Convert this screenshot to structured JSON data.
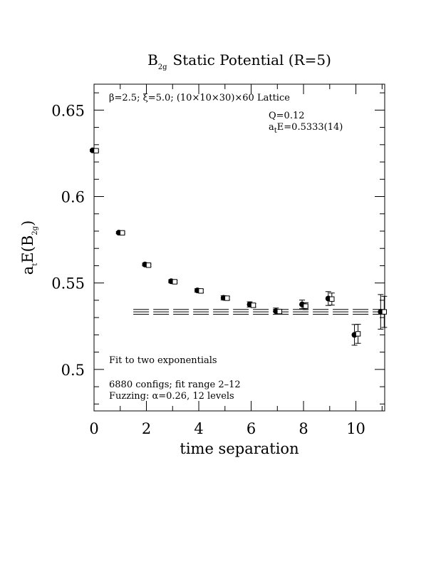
{
  "chart_data": {
    "type": "scatter",
    "title_main": "B",
    "title_sub": "2g",
    "title_rest": "Static Potential (R=5)",
    "xlabel": "time separation",
    "ylabel_main": "a",
    "ylabel_sub_t": "t",
    "ylabel_mid": "E(B",
    "ylabel_sub_2g": "2g",
    "ylabel_end": ")",
    "xlim": [
      0,
      11.1
    ],
    "ylim": [
      0.476,
      0.665
    ],
    "x_ticks": [
      0,
      2,
      4,
      6,
      8,
      10
    ],
    "x_tick_labels": [
      "0",
      "2",
      "4",
      "6",
      "8",
      "10"
    ],
    "y_ticks": [
      0.5,
      0.55,
      0.6,
      0.65
    ],
    "y_tick_labels": [
      "0.5",
      "0.55",
      "0.6",
      "0.65"
    ],
    "annotations": {
      "lattice": "β=2.5; ξ=5.0; (10×10×30)×60 Lattice",
      "q": "Q=0.12",
      "energy_main": "a",
      "energy_sub": "t",
      "energy_rest": "E=0.5333(14)",
      "fit": "Fit to two exponentials",
      "configs": "6880 configs; fit range 2–12",
      "fuzzing": "Fuzzing: α=0.26, 12 levels"
    },
    "series": [
      {
        "marker": "filled-circle",
        "x": [
          0,
          1,
          2,
          3,
          4,
          5,
          6,
          7,
          8,
          9,
          10,
          11
        ],
        "y": [
          0.6267,
          0.5791,
          0.5607,
          0.551,
          0.5457,
          0.5414,
          0.5376,
          0.5337,
          0.5376,
          0.541,
          0.52,
          0.5333
        ],
        "err": [
          0.0006,
          0.0006,
          0.0008,
          0.0009,
          0.001,
          0.0012,
          0.0015,
          0.0018,
          0.0025,
          0.004,
          0.006,
          0.01
        ]
      },
      {
        "marker": "open-square",
        "x": [
          0,
          1,
          2,
          3,
          4,
          5,
          6,
          7,
          8,
          9,
          10,
          11
        ],
        "y": [
          0.6265,
          0.579,
          0.5603,
          0.5507,
          0.5454,
          0.5412,
          0.5371,
          0.5335,
          0.5366,
          0.5407,
          0.5206,
          0.5333
        ],
        "err": [
          0.0005,
          0.0005,
          0.0006,
          0.0007,
          0.0008,
          0.0009,
          0.001,
          0.0012,
          0.002,
          0.0035,
          0.0055,
          0.009
        ]
      }
    ],
    "fit": {
      "x_range": [
        1.5,
        11.1
      ],
      "value": 0.5333,
      "error": 0.0014
    }
  }
}
